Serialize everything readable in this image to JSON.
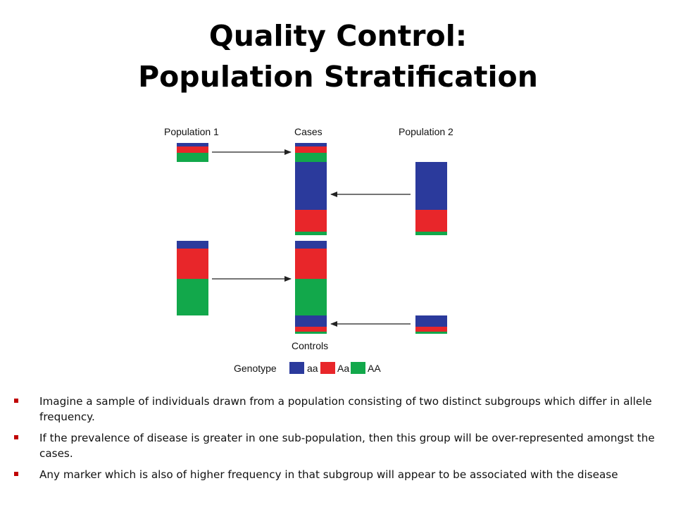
{
  "title": {
    "line1": "Quality Control:",
    "line2": "Population Stratification"
  },
  "diagram": {
    "labels": {
      "population1": "Population 1",
      "cases": "Cases",
      "population2": "Population 2",
      "controls": "Controls",
      "genotype": "Genotype"
    },
    "legend": [
      {
        "key": "aa",
        "label": "aa",
        "color": "#2b3a9c"
      },
      {
        "key": "Aa",
        "label": "Aa",
        "color": "#e8262a"
      },
      {
        "key": "AA",
        "label": "AA",
        "color": "#12a84b"
      }
    ]
  },
  "bullets": [
    "Imagine a sample of individuals drawn from a population consisting of two distinct subgroups which differ in allele frequency.",
    "If the prevalence of disease is greater in one sub-population, then this group will be over-represented amongst the cases.",
    "Any marker which is also of higher frequency in that subgroup will appear to be associated with the disease"
  ]
}
